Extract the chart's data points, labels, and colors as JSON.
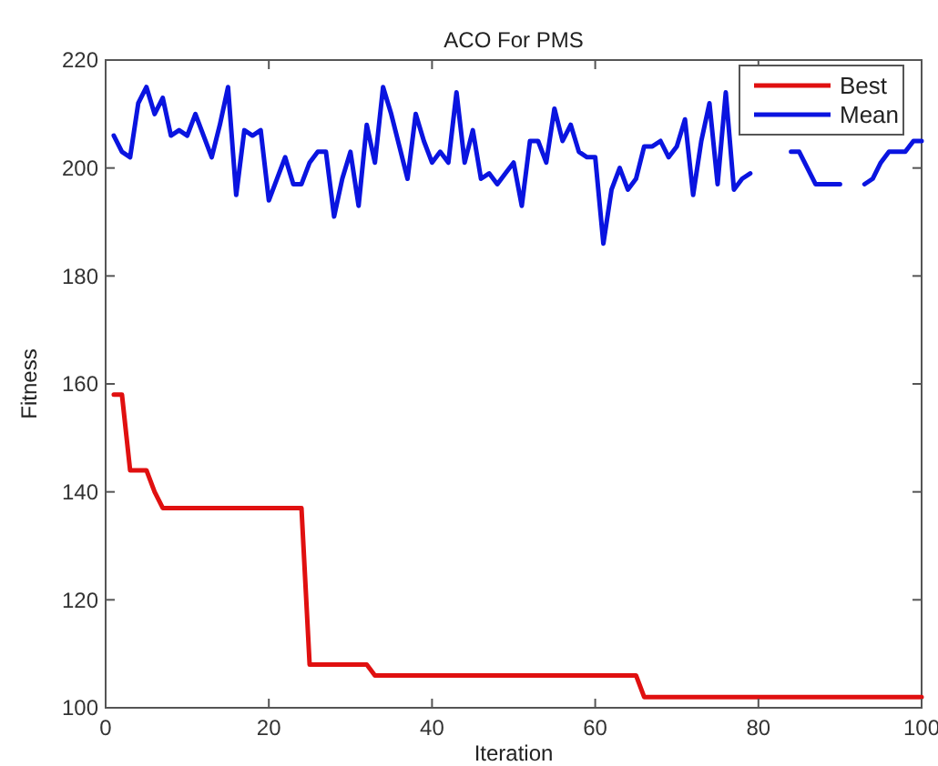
{
  "chart_data": {
    "type": "line",
    "title": "ACO For PMS",
    "xlabel": "Iteration",
    "ylabel": "Fitness",
    "x": [
      1,
      2,
      3,
      4,
      5,
      6,
      7,
      8,
      9,
      10,
      11,
      12,
      13,
      14,
      15,
      16,
      17,
      18,
      19,
      20,
      21,
      22,
      23,
      24,
      25,
      26,
      27,
      28,
      29,
      30,
      31,
      32,
      33,
      34,
      35,
      36,
      37,
      38,
      39,
      40,
      41,
      42,
      43,
      44,
      45,
      46,
      47,
      48,
      49,
      50,
      51,
      52,
      53,
      54,
      55,
      56,
      57,
      58,
      59,
      60,
      61,
      62,
      63,
      64,
      65,
      66,
      67,
      68,
      69,
      70,
      71,
      72,
      73,
      74,
      75,
      76,
      77,
      78,
      79,
      80,
      81,
      82,
      83,
      84,
      85,
      86,
      87,
      88,
      89,
      90,
      91,
      92,
      93,
      94,
      95,
      96,
      97,
      98,
      99,
      100
    ],
    "series": [
      {
        "name": "Best",
        "color": "#e01010",
        "values": [
          158,
          158,
          144,
          144,
          144,
          140,
          137,
          137,
          137,
          137,
          137,
          137,
          137,
          137,
          137,
          137,
          137,
          137,
          137,
          137,
          137,
          137,
          137,
          137,
          108,
          108,
          108,
          108,
          108,
          108,
          108,
          108,
          106,
          106,
          106,
          106,
          106,
          106,
          106,
          106,
          106,
          106,
          106,
          106,
          106,
          106,
          106,
          106,
          106,
          106,
          106,
          106,
          106,
          106,
          106,
          106,
          106,
          106,
          106,
          106,
          106,
          106,
          106,
          106,
          106,
          102,
          102,
          102,
          102,
          102,
          102,
          102,
          102,
          102,
          102,
          102,
          102,
          102,
          102,
          102,
          102,
          102,
          102,
          102,
          102,
          102,
          102,
          102,
          102,
          102,
          102,
          102,
          102,
          102,
          102,
          102,
          102,
          102,
          102,
          102
        ]
      },
      {
        "name": "Mean",
        "color": "#0a14e0",
        "values": [
          206,
          203,
          202,
          212,
          215,
          210,
          213,
          206,
          207,
          206,
          210,
          206,
          202,
          208,
          215,
          195,
          207,
          206,
          207,
          194,
          198,
          202,
          197,
          197,
          201,
          203,
          203,
          191,
          198,
          203,
          193,
          208,
          201,
          215,
          210,
          204,
          198,
          210,
          205,
          201,
          203,
          201,
          214,
          201,
          207,
          198,
          199,
          197,
          199,
          201,
          193,
          205,
          205,
          201,
          211,
          205,
          208,
          203,
          202,
          202,
          186,
          196,
          200,
          196,
          198,
          204,
          204,
          205,
          202,
          204,
          209,
          195,
          205,
          212,
          197,
          214,
          196,
          198,
          199,
          null,
          null,
          null,
          null,
          203,
          203,
          200,
          197,
          197,
          197,
          197,
          null,
          null,
          197,
          198,
          201,
          203,
          203,
          203,
          205,
          205
        ]
      }
    ],
    "xlim": [
      0,
      100
    ],
    "xticks": [
      0,
      20,
      40,
      60,
      80,
      100
    ],
    "ylim": [
      100,
      220
    ],
    "yticks": [
      100,
      120,
      140,
      160,
      180,
      200,
      220
    ],
    "legend": "top right",
    "grid": false,
    "marker": "none",
    "line_style": "solid"
  }
}
